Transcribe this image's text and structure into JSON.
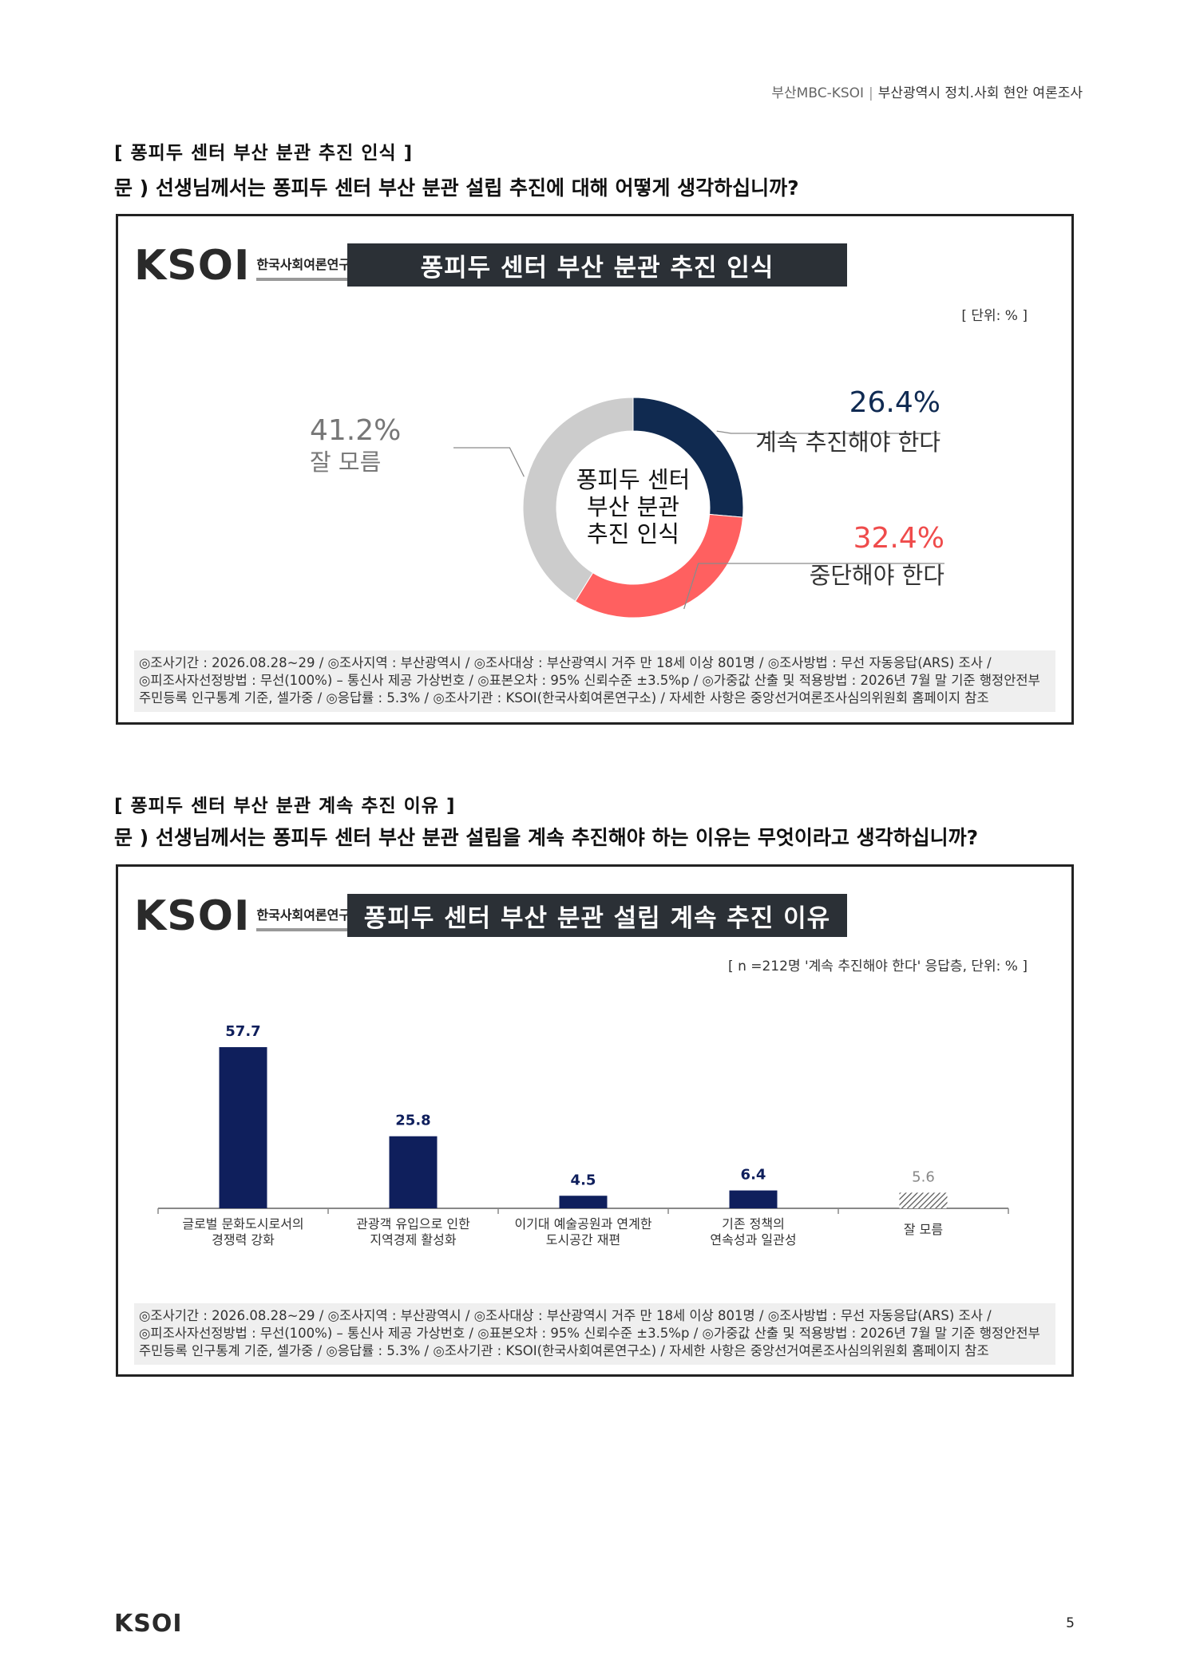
{
  "header": {
    "org": "부산MBC-KSOI",
    "sep": "|",
    "survey": "부산광역시 정치.사회 현안 여론조사"
  },
  "section1": {
    "title": "[ 퐁피두 센터 부산 분관 추진 인식 ]",
    "question": "문 )  선생님께서는 퐁피두 센터 부산 분관 설립 추진에 대해 어떻게 생각하십니까?",
    "logo_text": "KSOI",
    "logo_sub": "한국사회여론연구소",
    "banner": "퐁피두 센터 부산 분관 추진 인식",
    "unit": "[ 단위: % ]",
    "center_lines": [
      "퐁피두 센터",
      "부산 분관",
      "추진 인식"
    ],
    "footnote": [
      "◎조사기간 : 2026.08.28~29 / ◎조사지역 : 부산광역시 / ◎조사대상 : 부산광역시 거주 만 18세 이상 801명 / ◎조사방법 : 무선 자동응답(ARS) 조사 /",
      "◎피조사자선정방법 : 무선(100%) – 통신사 제공 가상번호 / ◎표본오차 : 95% 신뢰수준 ±3.5%p / ◎가중값 산출 및 적용방법 : 2026년 7월 말 기준 행정안전부",
      "주민등록 인구통계 기준, 셀가중 / ◎응답률 : 5.3% / ◎조사기관 : KSOI(한국사회여론연구소) / 자세한 사항은 중앙선거여론조사심의위원회 홈페이지 참조"
    ]
  },
  "section2": {
    "title": "[ 퐁피두 센터 부산 분관 계속 추진 이유 ]",
    "question": "문 )   선생님께서는 퐁피두 센터 부산 분관 설립을 계속 추진해야 하는 이유는 무엇이라고 생각하십니까?",
    "logo_text": "KSOI",
    "logo_sub": "한국사회여론연구소",
    "banner": "퐁피두 센터 부산 분관 설립 계속 추진 이유",
    "unit": "[ n =212명 '계속 추진해야 한다' 응답층, 단위: % ]",
    "footnote": [
      "◎조사기간 : 2026.08.28~29 / ◎조사지역 : 부산광역시 / ◎조사대상 : 부산광역시 거주 만 18세 이상 801명 / ◎조사방법 : 무선 자동응답(ARS) 조사 /",
      "◎피조사자선정방법 : 무선(100%) – 통신사 제공 가상번호 / ◎표본오차 : 95% 신뢰수준 ±3.5%p / ◎가중값 산출 및 적용방법 : 2026년 7월 말 기준 행정안전부",
      "주민등록 인구통계 기준, 셀가중 / ◎응답률 : 5.3% / ◎조사기관 : KSOI(한국사회여론연구소) / 자세한 사항은 중앙선거여론조사심의위원회 홈페이지 참조"
    ]
  },
  "chart_data": [
    {
      "type": "pie",
      "title": "퐁피두 센터 부산 분관 추진 인식",
      "unit": "%",
      "slices": [
        {
          "label": "계속 추진해야 한다",
          "value": 26.4,
          "display": "26.4%",
          "color": "#102a50"
        },
        {
          "label": "중단해야 한다",
          "value": 32.4,
          "display": "32.4%",
          "color": "#ff6060"
        },
        {
          "label": "잘 모름",
          "value": 41.2,
          "display": "41.2%",
          "color": "#c9c9c9"
        }
      ]
    },
    {
      "type": "bar",
      "title": "퐁피두 센터 부산 분관 설립 계속 추진 이유",
      "unit": "%",
      "categories": [
        [
          "글로벌 문화도시로서의",
          "경쟁력 강화"
        ],
        [
          "관광객 유입으로 인한",
          "지역경제 활성화"
        ],
        [
          "이기대 예술공원과 연계한",
          "도시공간 재편"
        ],
        [
          "기존 정책의",
          "연속성과 일관성"
        ],
        [
          "잘 모름"
        ]
      ],
      "values": [
        57.7,
        25.8,
        4.5,
        6.4,
        5.6
      ],
      "value_labels": [
        "57.7",
        "25.8",
        "4.5",
        "6.4",
        "5.6"
      ],
      "colors": [
        "#0f1f5c",
        "#0f1f5c",
        "#0f1f5c",
        "#0f1f5c",
        "hatched"
      ],
      "ylim": [
        0,
        60
      ]
    }
  ],
  "footer": {
    "logo": "KSOI",
    "page": "5"
  }
}
